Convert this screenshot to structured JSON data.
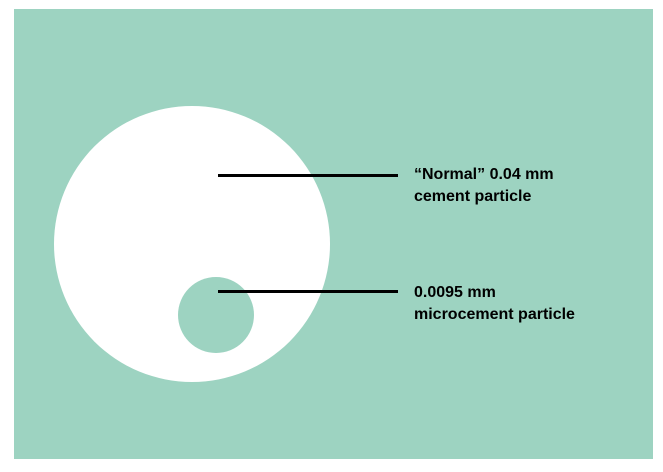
{
  "colors": {
    "background": "#9dd3c1",
    "particle": "#ffffff",
    "leader_line": "#000000"
  },
  "labels": {
    "normal": {
      "line1": "“Normal” 0.04 mm",
      "line2": "cement particle"
    },
    "micro": {
      "line1": "0.0095 mm",
      "line2": "microcement particle"
    }
  }
}
